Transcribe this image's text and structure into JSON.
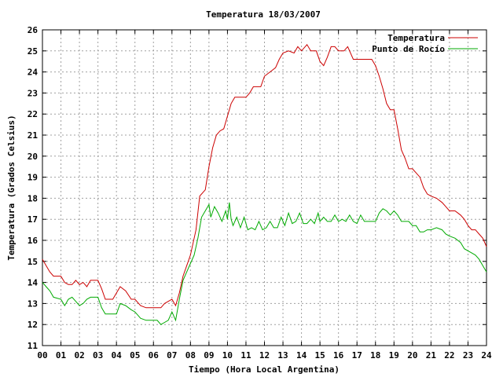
{
  "chart_data": {
    "type": "line",
    "title": "Temperatura 18/03/2007",
    "xlabel": "Tiempo (Hora Local Argentina)",
    "ylabel": "Temperatura (Grados Celsius)",
    "xlim": [
      0,
      24
    ],
    "ylim": [
      11,
      26
    ],
    "grid": true,
    "legend_position": "top-right",
    "xticks": [
      "00",
      "01",
      "02",
      "03",
      "04",
      "05",
      "06",
      "07",
      "08",
      "09",
      "10",
      "11",
      "12",
      "13",
      "14",
      "15",
      "16",
      "17",
      "18",
      "19",
      "20",
      "21",
      "22",
      "23",
      "24"
    ],
    "yticks": [
      11,
      12,
      13,
      14,
      15,
      16,
      17,
      18,
      19,
      20,
      21,
      22,
      23,
      24,
      25,
      26
    ],
    "series": [
      {
        "name": "Temperatura",
        "color": "#cc0000",
        "points": [
          [
            0.0,
            15.1
          ],
          [
            0.2,
            14.8
          ],
          [
            0.4,
            14.5
          ],
          [
            0.6,
            14.3
          ],
          [
            1.0,
            14.3
          ],
          [
            1.2,
            14.0
          ],
          [
            1.4,
            13.9
          ],
          [
            1.6,
            13.9
          ],
          [
            1.8,
            14.1
          ],
          [
            2.0,
            13.9
          ],
          [
            2.2,
            14.0
          ],
          [
            2.4,
            13.8
          ],
          [
            2.6,
            14.1
          ],
          [
            3.0,
            14.1
          ],
          [
            3.2,
            13.7
          ],
          [
            3.4,
            13.2
          ],
          [
            3.8,
            13.2
          ],
          [
            4.0,
            13.5
          ],
          [
            4.2,
            13.8
          ],
          [
            4.5,
            13.6
          ],
          [
            4.8,
            13.2
          ],
          [
            5.0,
            13.2
          ],
          [
            5.3,
            12.9
          ],
          [
            5.6,
            12.8
          ],
          [
            5.9,
            12.8
          ],
          [
            6.2,
            12.8
          ],
          [
            6.4,
            12.8
          ],
          [
            6.6,
            13.0
          ],
          [
            6.8,
            13.1
          ],
          [
            7.0,
            13.2
          ],
          [
            7.2,
            12.9
          ],
          [
            7.4,
            13.5
          ],
          [
            7.6,
            14.3
          ],
          [
            7.8,
            14.8
          ],
          [
            8.0,
            15.3
          ],
          [
            8.3,
            16.5
          ],
          [
            8.5,
            18.1
          ],
          [
            8.8,
            18.4
          ],
          [
            9.0,
            19.5
          ],
          [
            9.2,
            20.4
          ],
          [
            9.4,
            21.0
          ],
          [
            9.6,
            21.2
          ],
          [
            9.8,
            21.3
          ],
          [
            10.0,
            21.9
          ],
          [
            10.2,
            22.5
          ],
          [
            10.4,
            22.8
          ],
          [
            10.6,
            22.8
          ],
          [
            11.0,
            22.8
          ],
          [
            11.2,
            23.0
          ],
          [
            11.4,
            23.3
          ],
          [
            11.6,
            23.3
          ],
          [
            11.8,
            23.3
          ],
          [
            12.0,
            23.8
          ],
          [
            12.3,
            24.0
          ],
          [
            12.6,
            24.2
          ],
          [
            12.8,
            24.6
          ],
          [
            13.0,
            24.9
          ],
          [
            13.3,
            25.0
          ],
          [
            13.6,
            24.9
          ],
          [
            13.8,
            25.2
          ],
          [
            14.0,
            25.0
          ],
          [
            14.3,
            25.3
          ],
          [
            14.5,
            25.0
          ],
          [
            14.8,
            25.0
          ],
          [
            15.0,
            24.5
          ],
          [
            15.2,
            24.3
          ],
          [
            15.4,
            24.7
          ],
          [
            15.6,
            25.2
          ],
          [
            15.8,
            25.2
          ],
          [
            16.0,
            25.0
          ],
          [
            16.3,
            25.0
          ],
          [
            16.5,
            25.2
          ],
          [
            16.8,
            24.6
          ],
          [
            17.0,
            24.6
          ],
          [
            17.3,
            24.6
          ],
          [
            17.6,
            24.6
          ],
          [
            17.8,
            24.6
          ],
          [
            18.0,
            24.3
          ],
          [
            18.2,
            23.8
          ],
          [
            18.4,
            23.2
          ],
          [
            18.6,
            22.5
          ],
          [
            18.8,
            22.2
          ],
          [
            19.0,
            22.2
          ],
          [
            19.2,
            21.3
          ],
          [
            19.4,
            20.3
          ],
          [
            19.6,
            19.9
          ],
          [
            19.8,
            19.4
          ],
          [
            20.0,
            19.4
          ],
          [
            20.2,
            19.2
          ],
          [
            20.4,
            19.0
          ],
          [
            20.6,
            18.5
          ],
          [
            20.8,
            18.2
          ],
          [
            21.0,
            18.1
          ],
          [
            21.3,
            18.0
          ],
          [
            21.6,
            17.8
          ],
          [
            21.8,
            17.6
          ],
          [
            22.0,
            17.4
          ],
          [
            22.3,
            17.4
          ],
          [
            22.6,
            17.2
          ],
          [
            22.8,
            17.0
          ],
          [
            23.0,
            16.7
          ],
          [
            23.2,
            16.5
          ],
          [
            23.4,
            16.5
          ],
          [
            23.6,
            16.3
          ],
          [
            23.8,
            16.1
          ],
          [
            24.0,
            15.7
          ]
        ]
      },
      {
        "name": "Punto de Rocío",
        "color": "#00aa00",
        "points": [
          [
            0.0,
            14.0
          ],
          [
            0.2,
            13.8
          ],
          [
            0.4,
            13.6
          ],
          [
            0.6,
            13.3
          ],
          [
            1.0,
            13.2
          ],
          [
            1.2,
            12.9
          ],
          [
            1.4,
            13.2
          ],
          [
            1.6,
            13.3
          ],
          [
            1.8,
            13.1
          ],
          [
            2.0,
            12.9
          ],
          [
            2.2,
            13.0
          ],
          [
            2.4,
            13.2
          ],
          [
            2.6,
            13.3
          ],
          [
            3.0,
            13.3
          ],
          [
            3.2,
            12.8
          ],
          [
            3.4,
            12.5
          ],
          [
            3.8,
            12.5
          ],
          [
            4.0,
            12.5
          ],
          [
            4.2,
            13.0
          ],
          [
            4.5,
            12.9
          ],
          [
            4.8,
            12.7
          ],
          [
            5.0,
            12.6
          ],
          [
            5.3,
            12.3
          ],
          [
            5.6,
            12.2
          ],
          [
            5.9,
            12.2
          ],
          [
            6.2,
            12.2
          ],
          [
            6.4,
            12.0
          ],
          [
            6.6,
            12.1
          ],
          [
            6.8,
            12.2
          ],
          [
            7.0,
            12.6
          ],
          [
            7.2,
            12.2
          ],
          [
            7.4,
            13.2
          ],
          [
            7.6,
            14.1
          ],
          [
            7.8,
            14.5
          ],
          [
            8.0,
            14.9
          ],
          [
            8.2,
            15.3
          ],
          [
            8.4,
            16.1
          ],
          [
            8.6,
            17.1
          ],
          [
            8.8,
            17.4
          ],
          [
            9.0,
            17.7
          ],
          [
            9.1,
            17.1
          ],
          [
            9.3,
            17.6
          ],
          [
            9.5,
            17.3
          ],
          [
            9.7,
            16.9
          ],
          [
            9.9,
            17.4
          ],
          [
            10.0,
            17.0
          ],
          [
            10.1,
            17.8
          ],
          [
            10.2,
            17.0
          ],
          [
            10.3,
            16.7
          ],
          [
            10.5,
            17.1
          ],
          [
            10.7,
            16.6
          ],
          [
            10.9,
            17.1
          ],
          [
            11.1,
            16.5
          ],
          [
            11.3,
            16.6
          ],
          [
            11.5,
            16.5
          ],
          [
            11.7,
            16.9
          ],
          [
            11.9,
            16.5
          ],
          [
            12.1,
            16.6
          ],
          [
            12.3,
            16.9
          ],
          [
            12.5,
            16.6
          ],
          [
            12.7,
            16.6
          ],
          [
            12.9,
            17.1
          ],
          [
            13.1,
            16.7
          ],
          [
            13.3,
            17.3
          ],
          [
            13.5,
            16.8
          ],
          [
            13.7,
            16.9
          ],
          [
            13.9,
            17.3
          ],
          [
            14.1,
            16.8
          ],
          [
            14.3,
            16.8
          ],
          [
            14.5,
            17.0
          ],
          [
            14.7,
            16.8
          ],
          [
            14.9,
            17.3
          ],
          [
            15.0,
            16.9
          ],
          [
            15.2,
            17.1
          ],
          [
            15.4,
            16.9
          ],
          [
            15.6,
            16.9
          ],
          [
            15.8,
            17.2
          ],
          [
            16.0,
            16.9
          ],
          [
            16.2,
            17.0
          ],
          [
            16.4,
            16.9
          ],
          [
            16.6,
            17.2
          ],
          [
            16.8,
            16.9
          ],
          [
            17.0,
            16.8
          ],
          [
            17.2,
            17.2
          ],
          [
            17.4,
            16.9
          ],
          [
            17.6,
            16.9
          ],
          [
            17.8,
            16.9
          ],
          [
            18.0,
            16.9
          ],
          [
            18.2,
            17.3
          ],
          [
            18.4,
            17.5
          ],
          [
            18.6,
            17.4
          ],
          [
            18.8,
            17.2
          ],
          [
            19.0,
            17.4
          ],
          [
            19.2,
            17.2
          ],
          [
            19.4,
            16.9
          ],
          [
            19.6,
            16.9
          ],
          [
            19.8,
            16.9
          ],
          [
            20.0,
            16.7
          ],
          [
            20.2,
            16.7
          ],
          [
            20.4,
            16.4
          ],
          [
            20.6,
            16.4
          ],
          [
            20.8,
            16.5
          ],
          [
            21.0,
            16.5
          ],
          [
            21.3,
            16.6
          ],
          [
            21.6,
            16.5
          ],
          [
            21.8,
            16.3
          ],
          [
            22.0,
            16.2
          ],
          [
            22.3,
            16.1
          ],
          [
            22.6,
            15.9
          ],
          [
            22.8,
            15.6
          ],
          [
            23.0,
            15.5
          ],
          [
            23.2,
            15.4
          ],
          [
            23.4,
            15.3
          ],
          [
            23.6,
            15.1
          ],
          [
            23.8,
            14.8
          ],
          [
            24.0,
            14.5
          ]
        ]
      }
    ]
  }
}
